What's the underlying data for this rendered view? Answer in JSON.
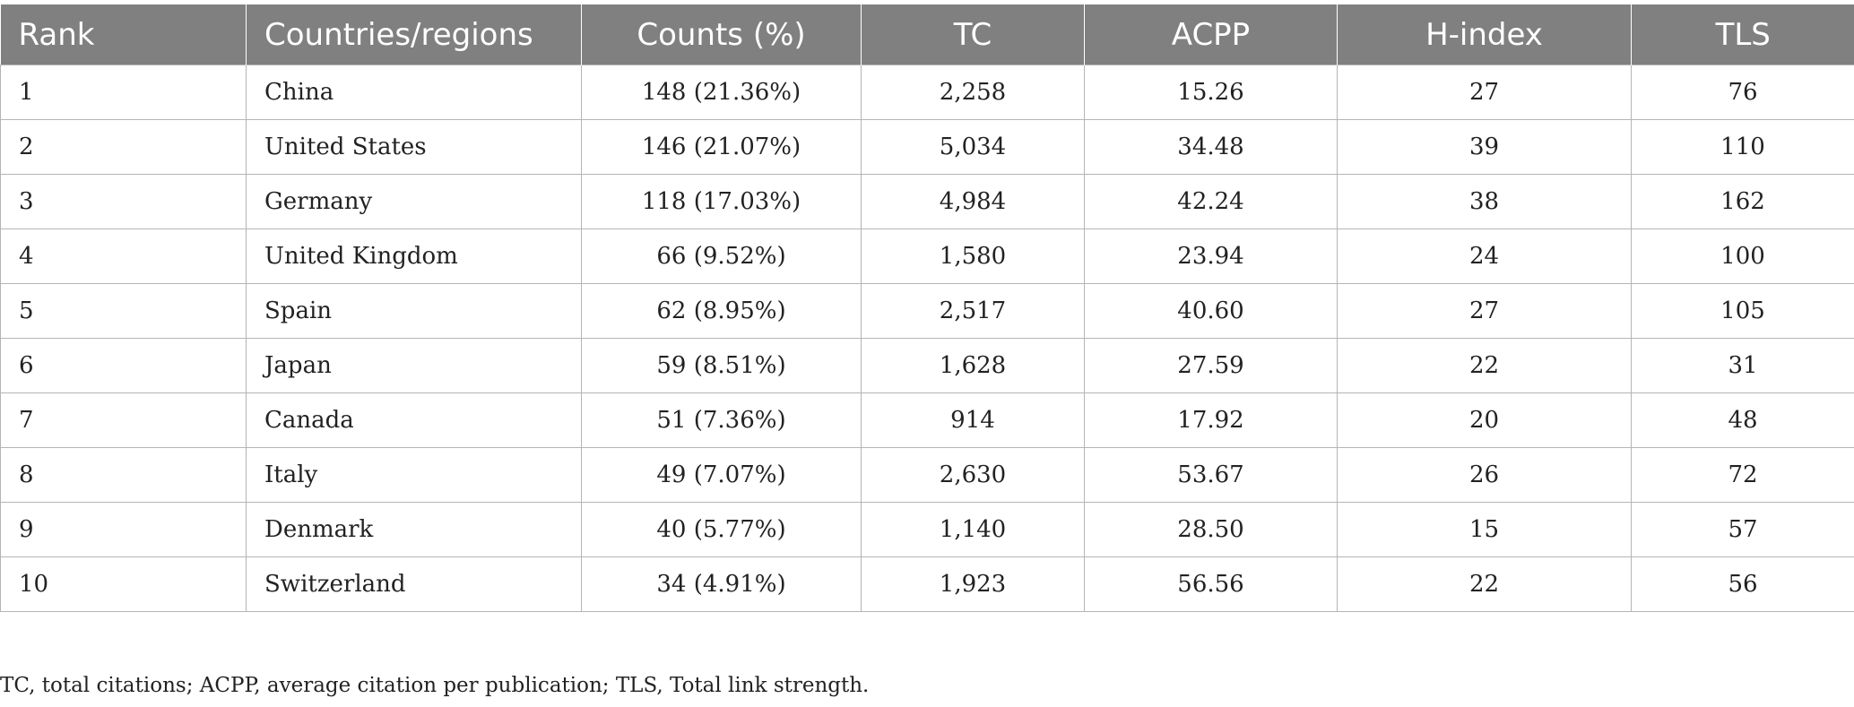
{
  "table": {
    "headers": [
      "Rank",
      "Countries/regions",
      "Counts (%)",
      "TC",
      "ACPP",
      "H-index",
      "TLS"
    ],
    "rows": [
      [
        "1",
        "China",
        "148 (21.36%)",
        "2,258",
        "15.26",
        "27",
        "76"
      ],
      [
        "2",
        "United States",
        "146 (21.07%)",
        "5,034",
        "34.48",
        "39",
        "110"
      ],
      [
        "3",
        "Germany",
        "118 (17.03%)",
        "4,984",
        "42.24",
        "38",
        "162"
      ],
      [
        "4",
        "United Kingdom",
        "66 (9.52%)",
        "1,580",
        "23.94",
        "24",
        "100"
      ],
      [
        "5",
        "Spain",
        "62 (8.95%)",
        "2,517",
        "40.60",
        "27",
        "105"
      ],
      [
        "6",
        "Japan",
        "59 (8.51%)",
        "1,628",
        "27.59",
        "22",
        "31"
      ],
      [
        "7",
        "Canada",
        "51 (7.36%)",
        "914",
        "17.92",
        "20",
        "48"
      ],
      [
        "8",
        "Italy",
        "49 (7.07%)",
        "2,630",
        "53.67",
        "26",
        "72"
      ],
      [
        "9",
        "Denmark",
        "40 (5.77%)",
        "1,140",
        "28.50",
        "15",
        "57"
      ],
      [
        "10",
        "Switzerland",
        "34 (4.91%)",
        "1,923",
        "56.56",
        "22",
        "56"
      ]
    ]
  },
  "footnote": "TC, total citations; ACPP, average citation per publication; TLS, Total link strength.",
  "colors": {
    "header_bg": "#808080",
    "header_text": "#ffffff",
    "grid_line": "#b5b5b5",
    "body_text": "#222222"
  }
}
